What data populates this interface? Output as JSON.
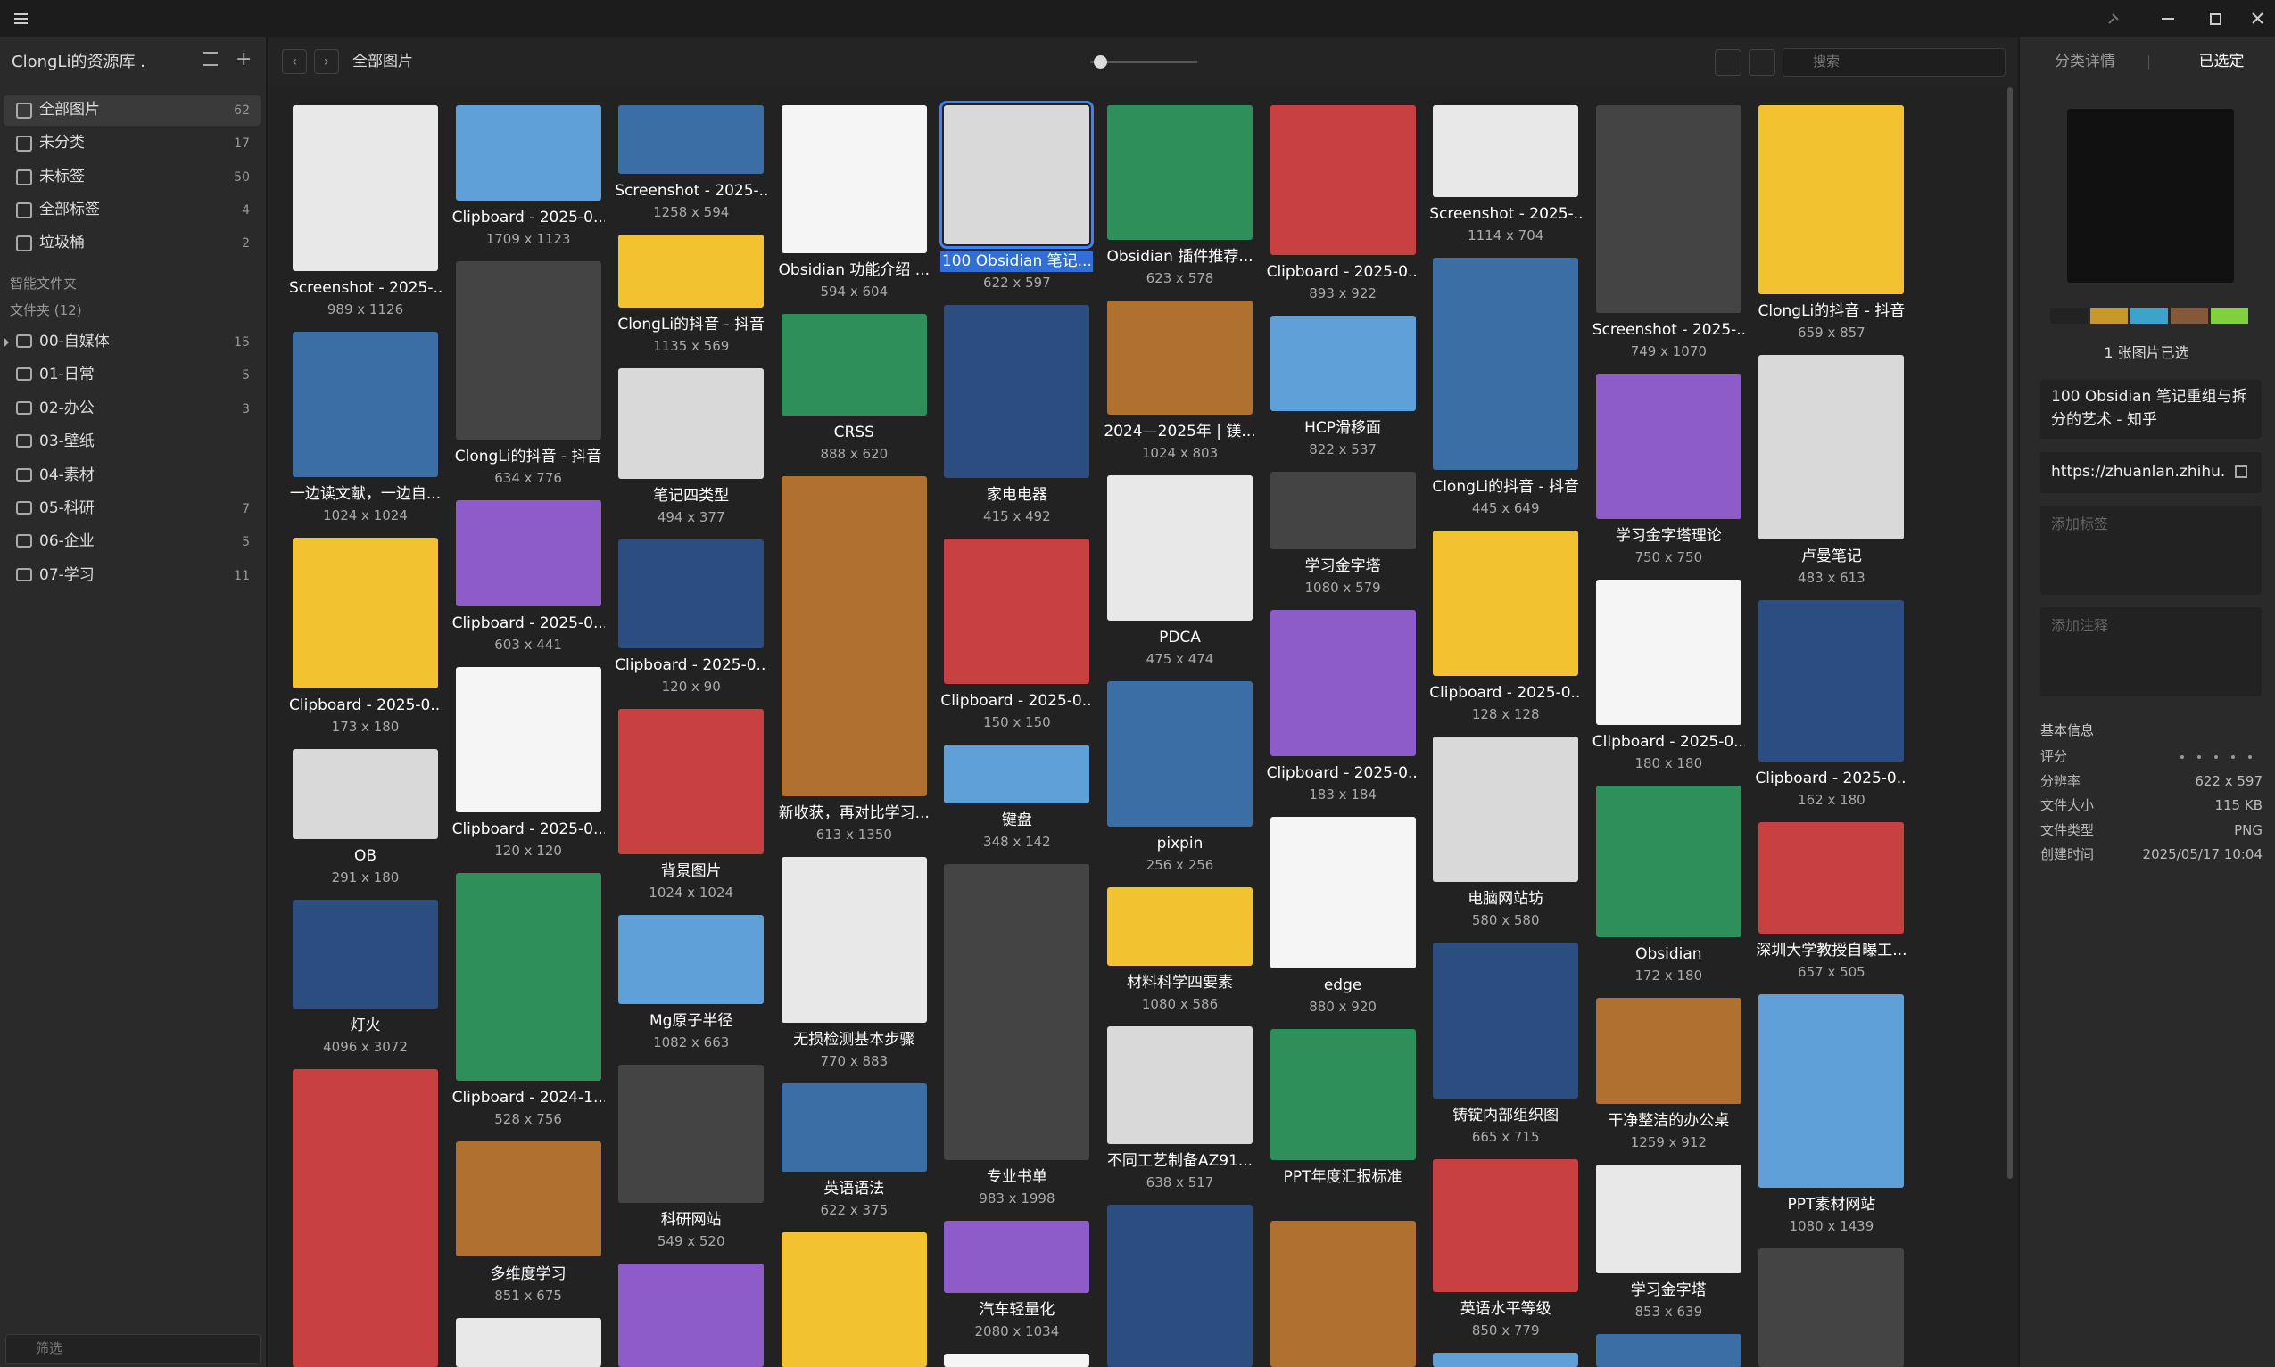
{
  "sidebar": {
    "library": "ClongLi的资源库 .",
    "nav": [
      {
        "label": "全部图片",
        "count": 62,
        "active": true
      },
      {
        "label": "未分类",
        "count": 17
      },
      {
        "label": "未标签",
        "count": 50
      },
      {
        "label": "全部标签",
        "count": 4
      },
      {
        "label": "垃圾桶",
        "count": 2
      }
    ],
    "smart_folders": "智能文件夹",
    "folders_title": "文件夹 (12)",
    "folders": [
      {
        "label": "00-自媒体",
        "count": 15
      },
      {
        "label": "01-日常",
        "count": 5
      },
      {
        "label": "02-办公",
        "count": 3
      },
      {
        "label": "03-壁纸"
      },
      {
        "label": "04-素材"
      },
      {
        "label": "05-科研",
        "count": 7
      },
      {
        "label": "06-企业",
        "count": 5
      },
      {
        "label": "07-学习",
        "count": 11
      }
    ],
    "filter_placeholder": "筛选"
  },
  "toolbar": {
    "path": "全部图片",
    "search_placeholder": "搜索"
  },
  "grid": {
    "columns": [
      [
        {
          "title": "Screenshot - 2025-...",
          "size": "989 x 1126"
        },
        {
          "title": "一边读文献，一边自...",
          "size": "1024 x 1024"
        },
        {
          "title": "Clipboard - 2025-0...",
          "size": "173 x 180"
        },
        {
          "title": "OB",
          "size": "291 x 180"
        },
        {
          "title": "灯火",
          "size": "4096 x 3072"
        }
      ],
      [
        {
          "title": "Clipboard - 2025-0...",
          "size": "1709 x 1123"
        },
        {
          "title": "ClongLi的抖音 - 抖音",
          "size": "634 x 776"
        },
        {
          "title": "Clipboard - 2025-0...",
          "size": "603 x 441"
        },
        {
          "title": "Clipboard - 2025-0...",
          "size": "120 x 120"
        },
        {
          "title": "Clipboard - 2024-1...",
          "size": "528 x 756"
        },
        {
          "title": "多维度学习",
          "size": "851 x 675"
        }
      ],
      [
        {
          "title": "Screenshot - 2025-...",
          "size": "1258 x 594"
        },
        {
          "title": "ClongLi的抖音 - 抖音",
          "size": "1135 x 569"
        },
        {
          "title": "笔记四类型",
          "size": "494 x 377"
        },
        {
          "title": "Clipboard - 2025-0...",
          "size": "120 x 90"
        },
        {
          "title": "背景图片",
          "size": "1024 x 1024"
        },
        {
          "title": "Mg原子半径",
          "size": "1082 x 663"
        },
        {
          "title": "科研网站",
          "size": "549 x 520"
        }
      ],
      [
        {
          "title": "Obsidian 功能介绍 ...",
          "size": "594 x 604"
        },
        {
          "title": "CRSS",
          "size": "888 x 620"
        },
        {
          "title": "新收获，再对比学习...",
          "size": "613 x 1350"
        },
        {
          "title": "无损检测基本步骤",
          "size": "770 x 883"
        },
        {
          "title": "英语语法",
          "size": "622 x 375"
        }
      ],
      [
        {
          "title": "100 Obsidian 笔记...",
          "size": "622 x 597",
          "selected": true
        },
        {
          "title": "家电电器",
          "size": "415 x 492"
        },
        {
          "title": "Clipboard - 2025-0...",
          "size": "150 x 150"
        },
        {
          "title": "键盘",
          "size": "348 x 142"
        },
        {
          "title": "专业书单",
          "size": "983 x 1998"
        },
        {
          "title": "汽车轻量化",
          "size": "2080 x 1034"
        }
      ],
      [
        {
          "title": "Obsidian 插件推荐...",
          "size": "623 x 578"
        },
        {
          "title": "2024—2025年 | 镁...",
          "size": "1024 x 803"
        },
        {
          "title": "PDCA",
          "size": "475 x 474"
        },
        {
          "title": "pixpin",
          "size": "256 x 256"
        },
        {
          "title": "材料科学四要素",
          "size": "1080 x 586"
        },
        {
          "title": "不同工艺制备AZ91...",
          "size": "638 x 517"
        }
      ],
      [
        {
          "title": "Clipboard - 2025-0...",
          "size": "893 x 922"
        },
        {
          "title": "HCP滑移面",
          "size": "822 x 537"
        },
        {
          "title": "学习金字塔",
          "size": "1080 x 579"
        },
        {
          "title": "Clipboard - 2025-0...",
          "size": "183 x 184"
        },
        {
          "title": "edge",
          "size": "880 x 920"
        },
        {
          "title": "PPT年度汇报标准"
        }
      ],
      [
        {
          "title": "Screenshot - 2025-...",
          "size": "1114 x 704"
        },
        {
          "title": "ClongLi的抖音 - 抖音",
          "size": "445 x 649"
        },
        {
          "title": "Clipboard - 2025-0...",
          "size": "128 x 128"
        },
        {
          "title": "电脑网站坊",
          "size": "580 x 580"
        },
        {
          "title": "铸锭内部组织图",
          "size": "665 x 715"
        },
        {
          "title": "英语水平等级",
          "size": "850 x 779"
        }
      ],
      [
        {
          "title": "Screenshot - 2025-...",
          "size": "749 x 1070"
        },
        {
          "title": "学习金字塔理论",
          "size": "750 x 750"
        },
        {
          "title": "Clipboard - 2025-0...",
          "size": "180 x 180"
        },
        {
          "title": "Obsidian",
          "size": "172 x 180"
        },
        {
          "title": "干净整洁的办公桌",
          "size": "1259 x 912"
        },
        {
          "title": "学习金字塔",
          "size": "853 x 639"
        }
      ],
      [
        {
          "title": "ClongLi的抖音 - 抖音",
          "size": "659 x 857"
        },
        {
          "title": "卢曼笔记",
          "size": "483 x 613"
        },
        {
          "title": "Clipboard - 2025-0...",
          "size": "162 x 180"
        },
        {
          "title": "深圳大学教授自曝工...",
          "size": "657 x 505"
        },
        {
          "title": "PPT素材网站",
          "size": "1080 x 1439"
        }
      ]
    ]
  },
  "inspector": {
    "tabs": [
      "分类详情",
      "已选定"
    ],
    "swatches": [
      "#222222",
      "#c8992a",
      "#3ea3cc",
      "#85583a",
      "#7fd13f"
    ],
    "selected_count": "1 张图片已选",
    "name": "100  Obsidian 笔记重组与拆分的艺术 - 知乎",
    "url": "https://zhuanlan.zhihu.c",
    "tags_placeholder": "添加标签",
    "notes_placeholder": "添加注释",
    "info_title": "基本信息",
    "info": [
      {
        "label": "评分"
      },
      {
        "label": "分辨率",
        "value": "622 x 597"
      },
      {
        "label": "文件大小",
        "value": "115 KB"
      },
      {
        "label": "文件类型",
        "value": "PNG"
      },
      {
        "label": "创建时间",
        "value": "2025/05/17 10:04"
      }
    ]
  }
}
